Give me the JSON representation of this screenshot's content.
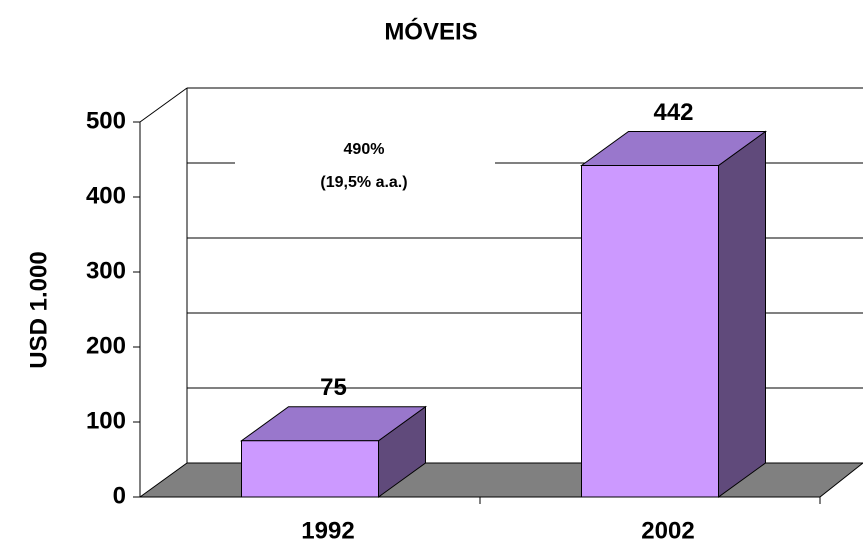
{
  "chart_data": {
    "type": "bar3d",
    "title": "MÓVEIS",
    "y_label": "USD 1.000",
    "categories": [
      "1992",
      "2002"
    ],
    "values": [
      75,
      442
    ],
    "color": "#cc99ff",
    "top_color": "#9977cc",
    "side_color": "#604a7b",
    "floor_color": "#808080",
    "ylim": [
      0,
      500
    ],
    "yticks": [
      0,
      100,
      200,
      300,
      400,
      500
    ],
    "grid": true,
    "annotation": [
      "490%",
      "(19,5% a.a.)"
    ]
  }
}
